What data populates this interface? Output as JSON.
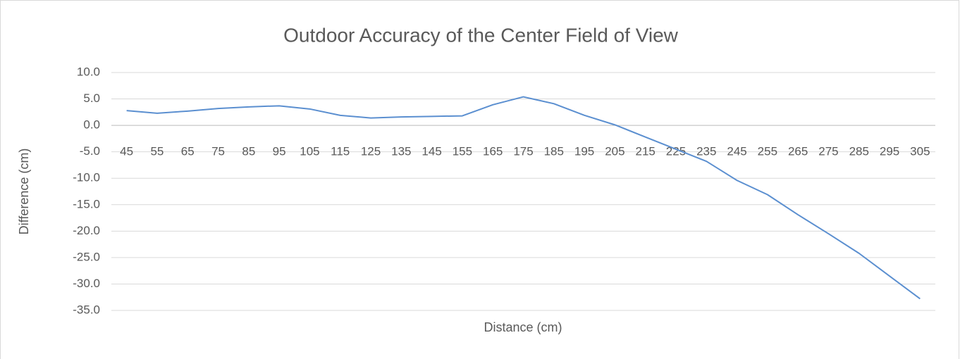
{
  "chart_data": {
    "type": "line",
    "title": "Outdoor Accuracy of the Center Field of View",
    "x_label": "Distance (cm)",
    "y_label": "Difference (cm)",
    "categories": [
      "45",
      "55",
      "65",
      "75",
      "85",
      "95",
      "105",
      "115",
      "125",
      "135",
      "145",
      "155",
      "165",
      "175",
      "185",
      "195",
      "205",
      "215",
      "225",
      "235",
      "245",
      "255",
      "265",
      "275",
      "285",
      "295",
      "305"
    ],
    "series": [
      {
        "name": "Difference",
        "color": "#5b8fd0",
        "values": [
          2.8,
          2.3,
          2.7,
          3.2,
          3.5,
          3.7,
          3.1,
          1.9,
          1.4,
          1.6,
          1.7,
          1.8,
          3.9,
          5.4,
          4.1,
          1.9,
          0.1,
          -2.2,
          -4.5,
          -6.8,
          -10.4,
          -13.1,
          -16.9,
          -20.5,
          -24.2,
          -28.5,
          -32.8
        ]
      }
    ],
    "ylim": [
      -35,
      10
    ],
    "yticks": [
      {
        "value": -35,
        "label": "-35.0"
      },
      {
        "value": -30,
        "label": "-30.0"
      },
      {
        "value": -25,
        "label": "-25.0"
      },
      {
        "value": -20,
        "label": "-20.0"
      },
      {
        "value": -15,
        "label": "-15.0"
      },
      {
        "value": -10,
        "label": "-10.0"
      },
      {
        "value": -5,
        "label": "-5.0"
      },
      {
        "value": 0,
        "label": "0.0"
      },
      {
        "value": 5,
        "label": "5.0"
      },
      {
        "value": 10,
        "label": "10.0"
      }
    ],
    "grid": true
  }
}
